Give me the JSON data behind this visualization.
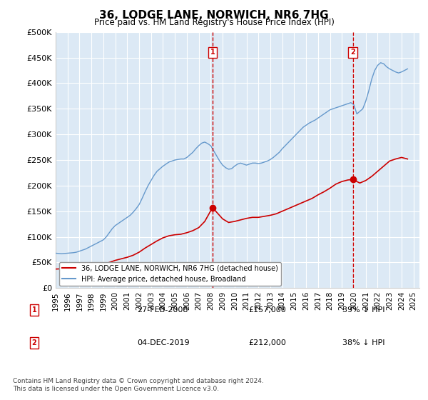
{
  "title": "36, LODGE LANE, NORWICH, NR6 7HG",
  "subtitle": "Price paid vs. HM Land Registry's House Price Index (HPI)",
  "ylabel_ticks": [
    "£0",
    "£50K",
    "£100K",
    "£150K",
    "£200K",
    "£250K",
    "£300K",
    "£350K",
    "£400K",
    "£450K",
    "£500K"
  ],
  "ytick_values": [
    0,
    50000,
    100000,
    150000,
    200000,
    250000,
    300000,
    350000,
    400000,
    450000,
    500000
  ],
  "ylim": [
    0,
    500000
  ],
  "xlim_start": 1995.0,
  "xlim_end": 2025.5,
  "background_color": "#ffffff",
  "plot_bg_color": "#dce9f5",
  "grid_color": "#ffffff",
  "red_line_color": "#cc0000",
  "blue_line_color": "#6699cc",
  "vline_color": "#cc0000",
  "annotation_box_color": "#cc0000",
  "marker1_x": 2008.15,
  "marker1_y": 157000,
  "marker2_x": 2019.92,
  "marker2_y": 212000,
  "legend_label_red": "36, LODGE LANE, NORWICH, NR6 7HG (detached house)",
  "legend_label_blue": "HPI: Average price, detached house, Broadland",
  "table_data": [
    {
      "num": "1",
      "date": "27-FEB-2008",
      "price": "£157,000",
      "hpi": "39% ↓ HPI"
    },
    {
      "num": "2",
      "date": "04-DEC-2019",
      "price": "£212,000",
      "hpi": "38% ↓ HPI"
    }
  ],
  "footnote": "Contains HM Land Registry data © Crown copyright and database right 2024.\nThis data is licensed under the Open Government Licence v3.0.",
  "hpi_x": [
    1995.0,
    1995.25,
    1995.5,
    1995.75,
    1996.0,
    1996.25,
    1996.5,
    1996.75,
    1997.0,
    1997.25,
    1997.5,
    1997.75,
    1998.0,
    1998.25,
    1998.5,
    1998.75,
    1999.0,
    1999.25,
    1999.5,
    1999.75,
    2000.0,
    2000.25,
    2000.5,
    2000.75,
    2001.0,
    2001.25,
    2001.5,
    2001.75,
    2002.0,
    2002.25,
    2002.5,
    2002.75,
    2003.0,
    2003.25,
    2003.5,
    2003.75,
    2004.0,
    2004.25,
    2004.5,
    2004.75,
    2005.0,
    2005.25,
    2005.5,
    2005.75,
    2006.0,
    2006.25,
    2006.5,
    2006.75,
    2007.0,
    2007.25,
    2007.5,
    2007.75,
    2008.0,
    2008.25,
    2008.5,
    2008.75,
    2009.0,
    2009.25,
    2009.5,
    2009.75,
    2010.0,
    2010.25,
    2010.5,
    2010.75,
    2011.0,
    2011.25,
    2011.5,
    2011.75,
    2012.0,
    2012.25,
    2012.5,
    2012.75,
    2013.0,
    2013.25,
    2013.5,
    2013.75,
    2014.0,
    2014.25,
    2014.5,
    2014.75,
    2015.0,
    2015.25,
    2015.5,
    2015.75,
    2016.0,
    2016.25,
    2016.5,
    2016.75,
    2017.0,
    2017.25,
    2017.5,
    2017.75,
    2018.0,
    2018.25,
    2018.5,
    2018.75,
    2019.0,
    2019.25,
    2019.5,
    2019.75,
    2020.0,
    2020.25,
    2020.5,
    2020.75,
    2021.0,
    2021.25,
    2021.5,
    2021.75,
    2022.0,
    2022.25,
    2022.5,
    2022.75,
    2023.0,
    2023.25,
    2023.5,
    2023.75,
    2024.0,
    2024.25,
    2024.5
  ],
  "hpi_y": [
    68000,
    67500,
    67000,
    67500,
    68000,
    68500,
    69000,
    70000,
    72000,
    74000,
    76000,
    79000,
    82000,
    85000,
    88000,
    91000,
    94000,
    100000,
    108000,
    116000,
    122000,
    126000,
    130000,
    134000,
    138000,
    142000,
    148000,
    155000,
    163000,
    175000,
    188000,
    200000,
    210000,
    220000,
    228000,
    233000,
    238000,
    242000,
    246000,
    248000,
    250000,
    251000,
    252000,
    252000,
    255000,
    260000,
    265000,
    272000,
    278000,
    283000,
    285000,
    282000,
    278000,
    268000,
    258000,
    248000,
    240000,
    235000,
    232000,
    233000,
    238000,
    242000,
    244000,
    242000,
    240000,
    242000,
    244000,
    244000,
    243000,
    244000,
    246000,
    248000,
    251000,
    255000,
    260000,
    265000,
    272000,
    278000,
    284000,
    290000,
    296000,
    302000,
    308000,
    314000,
    318000,
    322000,
    325000,
    328000,
    332000,
    336000,
    340000,
    344000,
    348000,
    350000,
    352000,
    354000,
    356000,
    358000,
    360000,
    362000,
    358000,
    340000,
    345000,
    350000,
    365000,
    385000,
    408000,
    425000,
    435000,
    440000,
    438000,
    432000,
    428000,
    425000,
    422000,
    420000,
    422000,
    425000,
    428000
  ],
  "red_x": [
    1995.0,
    1995.5,
    1996.0,
    1996.5,
    1997.0,
    1997.5,
    1998.0,
    1998.5,
    1999.0,
    1999.5,
    2000.0,
    2000.5,
    2001.0,
    2001.5,
    2002.0,
    2002.5,
    2003.0,
    2003.5,
    2004.0,
    2004.5,
    2005.0,
    2005.5,
    2006.0,
    2006.5,
    2007.0,
    2007.5,
    2008.15,
    2008.5,
    2009.0,
    2009.5,
    2010.0,
    2010.5,
    2011.0,
    2011.5,
    2012.0,
    2012.5,
    2013.0,
    2013.5,
    2014.0,
    2014.5,
    2015.0,
    2015.5,
    2016.0,
    2016.5,
    2017.0,
    2017.5,
    2018.0,
    2018.5,
    2019.0,
    2019.5,
    2019.92,
    2020.5,
    2021.0,
    2021.5,
    2022.0,
    2022.5,
    2023.0,
    2023.5,
    2024.0,
    2024.5
  ],
  "red_y": [
    37000,
    37500,
    38000,
    38500,
    39000,
    40000,
    41000,
    43000,
    46000,
    50000,
    54000,
    57000,
    60000,
    64000,
    70000,
    78000,
    85000,
    92000,
    98000,
    102000,
    104000,
    105000,
    108000,
    112000,
    118000,
    130000,
    157000,
    148000,
    135000,
    128000,
    130000,
    133000,
    136000,
    138000,
    138000,
    140000,
    142000,
    145000,
    150000,
    155000,
    160000,
    165000,
    170000,
    175000,
    182000,
    188000,
    195000,
    203000,
    208000,
    211000,
    212000,
    205000,
    210000,
    218000,
    228000,
    238000,
    248000,
    252000,
    255000,
    252000
  ]
}
